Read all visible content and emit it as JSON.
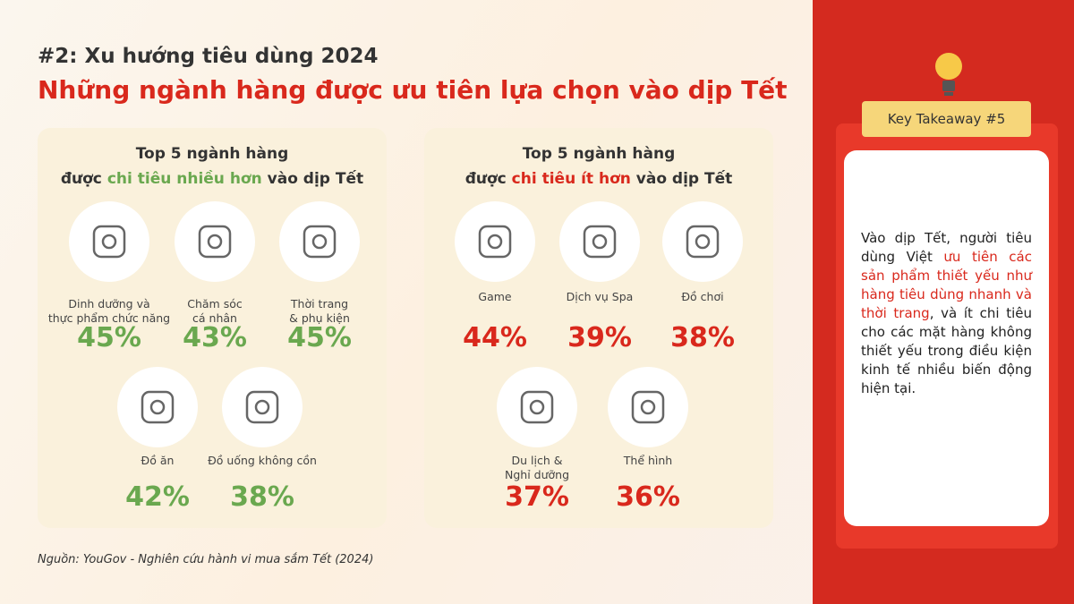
{
  "header": {
    "subtitle": "#2: Xu hướng tiêu dùng 2024",
    "title": "Những ngành hàng được ưu tiên lựa chọn vào dịp Tết"
  },
  "panels": [
    {
      "heading_line1": "Top 5 ngành hàng",
      "heading_prefix": "được ",
      "heading_highlight": "chi tiêu nhiều hơn",
      "heading_suffix": " vào dịp Tết",
      "items": [
        {
          "label": "Dinh dưỡng và\nthực phẩm chức năng",
          "value": "45%"
        },
        {
          "label": "Chăm sóc\ncá nhân",
          "value": "43%"
        },
        {
          "label": "Thời trang\n& phụ kiện",
          "value": "45%"
        },
        {
          "label": "Đồ ăn",
          "value": "42%"
        },
        {
          "label": "Đồ uống không cồn",
          "value": "38%"
        }
      ]
    },
    {
      "heading_line1": "Top 5 ngành hàng",
      "heading_prefix": "được ",
      "heading_highlight": "chi tiêu ít hơn",
      "heading_suffix": " vào dịp Tết",
      "items": [
        {
          "label": "Game",
          "value": "44%"
        },
        {
          "label": "Dịch vụ Spa",
          "value": "39%"
        },
        {
          "label": "Đồ chơi",
          "value": "38%"
        },
        {
          "label": "Du lịch &\nNghỉ dưỡng",
          "value": "37%"
        },
        {
          "label": "Thể hình",
          "value": "36%"
        }
      ]
    }
  ],
  "source": "Nguồn: YouGov - Nghiên cứu hành vi mua sắm Tết (2024)",
  "takeaway": {
    "badge": "Key Takeaway #5",
    "text_before": "Vào dịp Tết, người tiêu dùng Việt ",
    "highlight": "ưu tiên các sản phẩm thiết yếu như hàng tiêu dùng nhanh và thời trang",
    "text_after": ", và ít chi tiêu cho các mặt hàng không thiết yếu trong điều kiện kinh tế nhiều biến động hiện tại."
  }
}
